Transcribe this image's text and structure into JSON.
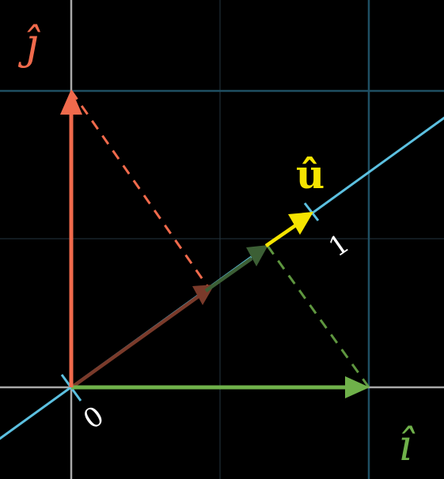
{
  "labels": {
    "j_hat": "ĵ",
    "i_hat": "î",
    "u_hat": "û",
    "origin": "0",
    "unit_tick": "1"
  },
  "colors": {
    "background": "#000000",
    "grid_fine": "#2a3c46",
    "grid_major": "#1f4f63",
    "axis": "#a9a9a9",
    "number_line": "#5cc0e0",
    "i_vector": "#6fb14a",
    "j_vector": "#f06a4c",
    "u_vector": "#f5e400",
    "proj_j": "#7a3a2a",
    "proj_i": "#3c5f35"
  }
}
